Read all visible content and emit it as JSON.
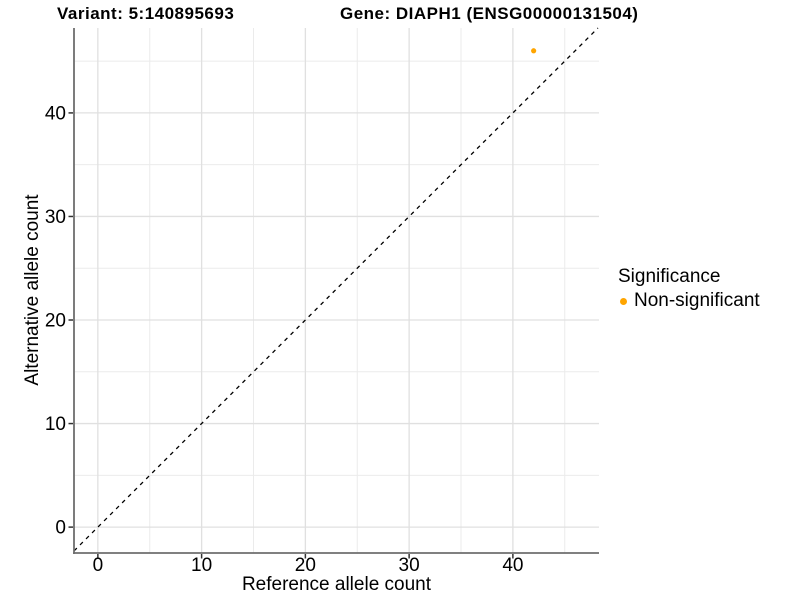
{
  "header": {
    "variant_title": "Variant: 5:140895693",
    "gene_title": "Gene: DIAPH1 (ENSG00000131504)"
  },
  "chart_data": {
    "type": "scatter",
    "xlabel": "Reference allele count",
    "ylabel": "Alternative allele count",
    "xlim": [
      -2.3,
      48.3
    ],
    "ylim": [
      -2.5,
      48.2
    ],
    "xticks": [
      0,
      10,
      20,
      30,
      40
    ],
    "yticks": [
      0,
      10,
      20,
      30,
      40
    ],
    "xticks_minor": [
      5,
      15,
      25,
      35,
      45
    ],
    "yticks_minor": [
      5,
      15,
      25,
      35,
      45
    ],
    "grid": true,
    "reference_line": {
      "type": "identity",
      "slope": 1,
      "intercept": 0,
      "linestyle": "dashed",
      "color": "#000000"
    },
    "series": [
      {
        "name": "Non-significant",
        "color": "#FFA500",
        "points": [
          [
            42,
            46
          ]
        ]
      }
    ],
    "legend": {
      "title": "Significance",
      "position": "right",
      "entries": [
        {
          "label": "Non-significant",
          "color": "#FFA500"
        }
      ]
    }
  },
  "colors": {
    "background": "#FFFFFF",
    "grid_major": "#E0E0E0",
    "grid_minor": "#EBEBEB",
    "axis_line": "#6E6E6E",
    "tick_mark": "#333333",
    "text": "#000000"
  }
}
